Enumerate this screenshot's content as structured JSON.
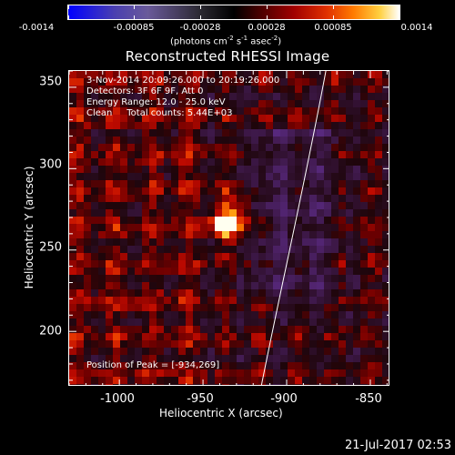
{
  "colorbar": {
    "labels": [
      "-0.0014",
      "-0.00085",
      "-0.00028",
      "0.00028",
      "0.00085",
      "0.0014"
    ],
    "units_main": "(photons cm",
    "units_exp1": "-2",
    "units_mid1": " s",
    "units_exp2": "-1",
    "units_mid2": " asec",
    "units_exp3": "-2",
    "units_end": ")"
  },
  "title": "Reconstructed RHESSI Image",
  "info": {
    "line1": "3-Nov-2014 20:09:26.000 to 20:19:26.000",
    "line2": "Detectors: 3F 6F 9F, Att 0",
    "line3": "Energy Range: 12.0 - 25.0 keV",
    "line4": "Clean     Total counts: 5.44E+03",
    "peak": "Position of Peak = [-934,269]"
  },
  "chart_data": {
    "type": "heatmap",
    "title": "Reconstructed RHESSI Image",
    "xlabel": "Heliocentric X (arcsec)",
    "ylabel": "Heliocentric Y (arcsec)",
    "xlim": [
      -1030,
      -838
    ],
    "ylim": [
      166,
      360
    ],
    "x_ticks": [
      -1000,
      -950,
      -900,
      -850
    ],
    "x_tick_labels": [
      "-1000",
      "-950",
      "-900",
      "-850"
    ],
    "y_ticks": [
      200,
      250,
      300,
      350
    ],
    "y_tick_labels": [
      "200",
      "250",
      "300",
      "350"
    ],
    "peak": [
      -934,
      269
    ],
    "colorbar_range": [
      -0.0014,
      0.0014
    ]
  },
  "timestamp": "21-Jul-2017 02:53"
}
